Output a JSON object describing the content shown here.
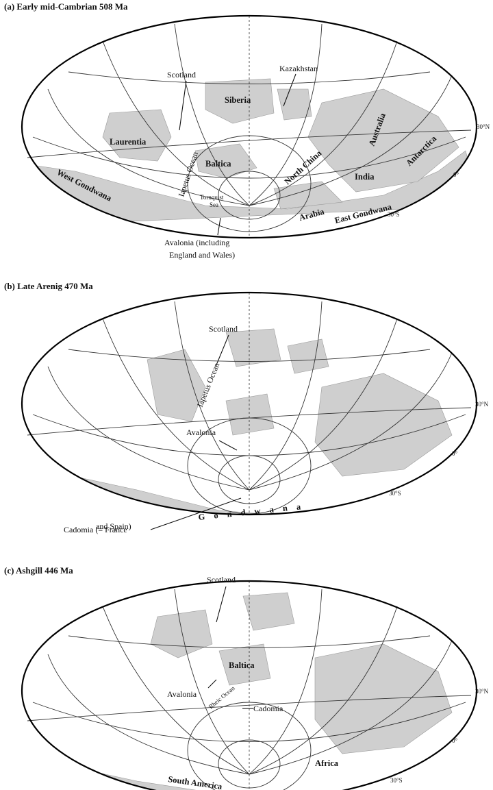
{
  "panels": [
    {
      "title": "(a) Early mid-Cambrian 508 Ma",
      "lat_labels": [
        "30°N",
        "0°",
        "30°S"
      ],
      "labels": {
        "scotland": "Scotland",
        "kazakhstan": "Kazakhstan",
        "siberia": "Siberia",
        "australia": "Australia",
        "laurentia": "Laurentia",
        "antarctica": "Antarctica",
        "baltica": "Baltica",
        "iapetus": "Iapetus Ocean",
        "north_china": "North China",
        "india": "India",
        "west_gondwana": "West Gondwana",
        "tornquist_1": "Tornquist",
        "tornquist_2": "Sea",
        "arabia": "Arabia",
        "east_gondwana": "East Gondwana",
        "avalonia_1": "Avalonia (including",
        "avalonia_2": "England and Wales)"
      }
    },
    {
      "title": "(b) Late Arenig 470 Ma",
      "lat_labels": [
        "30°N",
        "0°",
        "30°S"
      ],
      "labels": {
        "scotland": "Scotland",
        "iapetus": "Iapetus Ocean",
        "avalonia": "Avalonia",
        "gondwana": "G o n d w a n a",
        "cadomia_1": "Cadomia (= France",
        "cadomia_2": "and Spain)"
      }
    },
    {
      "title": "(c) Ashgill 446 Ma",
      "lat_labels": [
        "30°N",
        "0°",
        "30°S"
      ],
      "labels": {
        "scotland": "Scotland",
        "baltica": "Baltica",
        "avalonia": "Avalonia",
        "rheic": "Rheic Ocean",
        "cadomia": "Cadomia",
        "south_america": "South America",
        "africa": "Africa"
      }
    }
  ]
}
